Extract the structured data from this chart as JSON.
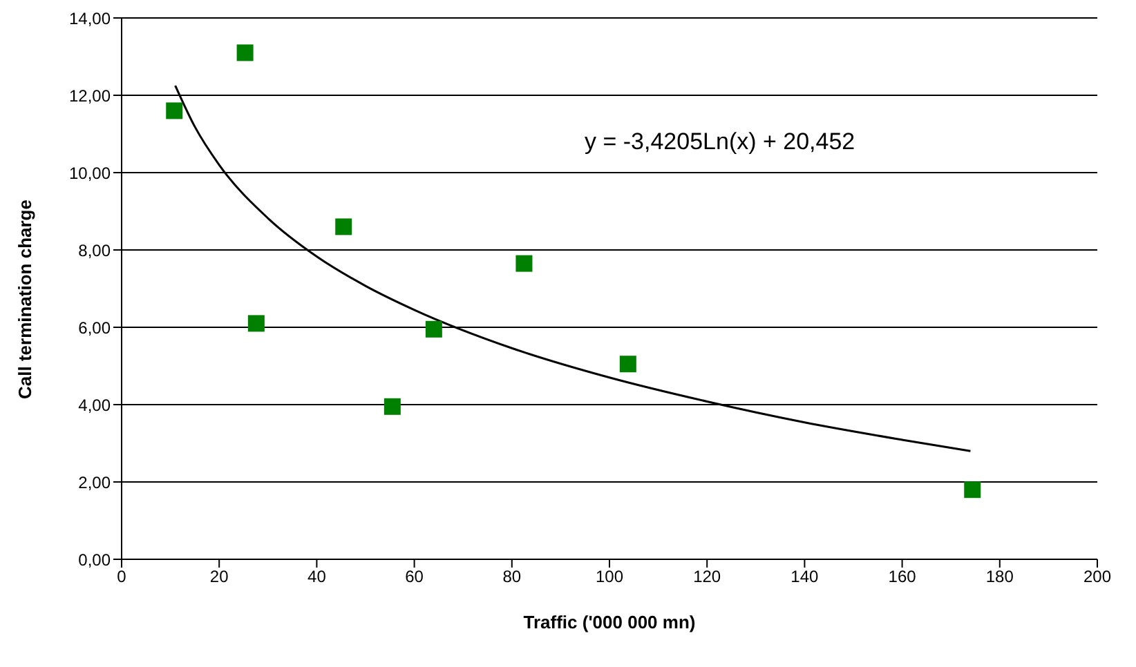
{
  "chart_data": {
    "type": "scatter",
    "xlabel": "Traffic ('000 000 mn)",
    "ylabel": "Call termination charge",
    "annotations": [
      "y = -3,4205Ln(x) + 20,452"
    ],
    "series": [
      {
        "color": "#008000",
        "marker": "square",
        "x": [
          10.8,
          25.3,
          27.6,
          45.5,
          55.5,
          64.0,
          82.5,
          103.8,
          174.4
        ],
        "values": [
          11.6,
          13.1,
          6.1,
          8.6,
          3.95,
          5.95,
          7.65,
          5.05,
          1.8
        ]
      },
      {
        "type": "line",
        "color": "#000000",
        "marker": "none",
        "x": [
          11,
          15,
          20,
          30,
          40,
          50,
          60,
          80,
          100,
          120,
          140,
          160,
          174
        ],
        "values": [
          12.25,
          11.19,
          10.2,
          8.82,
          7.83,
          7.07,
          6.45,
          5.46,
          4.7,
          4.08,
          3.54,
          3.09,
          2.8
        ]
      }
    ],
    "xlim": [
      0,
      200
    ],
    "xticks": [
      0,
      20,
      40,
      60,
      80,
      100,
      120,
      140,
      160,
      180,
      200
    ],
    "ylim": [
      0,
      14
    ],
    "yticks": [
      {
        "value": 0,
        "label": "0,00"
      },
      {
        "value": 2,
        "label": "2,00"
      },
      {
        "value": 4,
        "label": "4,00"
      },
      {
        "value": 6,
        "label": "6,00"
      },
      {
        "value": 8,
        "label": "8,00"
      },
      {
        "value": 10,
        "label": "10,00"
      },
      {
        "value": 12,
        "label": "12,00"
      },
      {
        "value": 14,
        "label": "14,00"
      }
    ],
    "grid": "y"
  }
}
